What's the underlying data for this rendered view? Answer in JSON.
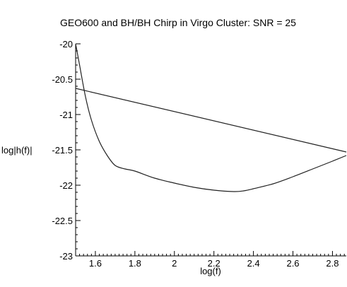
{
  "chart_data": {
    "type": "line",
    "title": "GEO600 and BH/BH Chirp in Virgo Cluster: SNR = 25",
    "xlabel": "log(f)",
    "ylabel": "log|h(f)|",
    "xlim": [
      1.5,
      2.87
    ],
    "ylim": [
      -23,
      -20
    ],
    "xticks": [
      "1.6",
      "1.8",
      "2",
      "2.2",
      "2.4",
      "2.6",
      "2.8"
    ],
    "yticks": [
      "-20",
      "-20.5",
      "-21",
      "-21.5",
      "-22",
      "-22.5",
      "-23"
    ],
    "grid": false,
    "series": [
      {
        "x": [
          1.5,
          2.87
        ],
        "y": [
          -20.63,
          -21.53
        ]
      },
      {
        "x": [
          1.5,
          1.52,
          1.55,
          1.58,
          1.62,
          1.66,
          1.7,
          1.75,
          1.8,
          1.9,
          2.0,
          2.1,
          2.2,
          2.3,
          2.35,
          2.4,
          2.5,
          2.6,
          2.7,
          2.8,
          2.87
        ],
        "y": [
          -20.0,
          -20.3,
          -20.75,
          -21.08,
          -21.38,
          -21.58,
          -21.72,
          -21.77,
          -21.8,
          -21.9,
          -21.97,
          -22.03,
          -22.07,
          -22.09,
          -22.08,
          -22.05,
          -21.98,
          -21.88,
          -21.77,
          -21.66,
          -21.58
        ]
      }
    ]
  }
}
